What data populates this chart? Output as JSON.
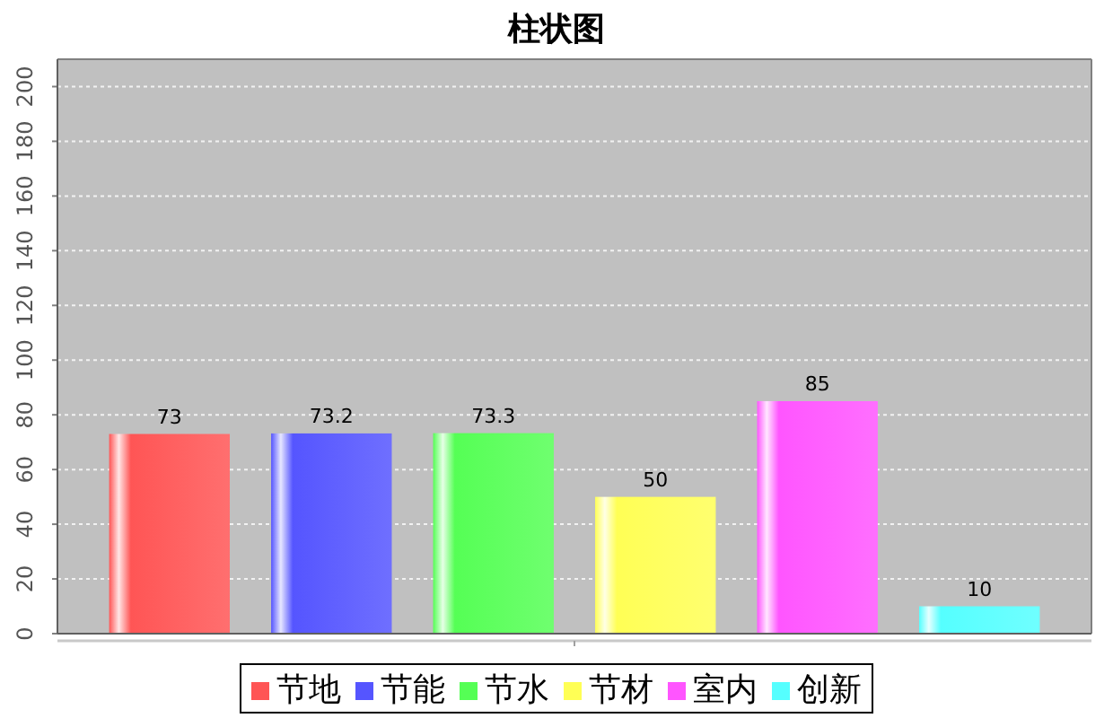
{
  "chart_data": {
    "type": "bar",
    "title": "柱状图",
    "categories": [
      null
    ],
    "series": [
      {
        "name": "节地",
        "color": "#ff5555",
        "values": [
          73
        ]
      },
      {
        "name": "节能",
        "color": "#5555ff",
        "values": [
          73.2
        ]
      },
      {
        "name": "节水",
        "color": "#55ff55",
        "values": [
          73.3
        ]
      },
      {
        "name": "节材",
        "color": "#ffff55",
        "values": [
          50
        ]
      },
      {
        "name": "室内",
        "color": "#ff55ff",
        "values": [
          85
        ]
      },
      {
        "name": "创新",
        "color": "#55ffff",
        "values": [
          10
        ]
      }
    ],
    "ylim": [
      0,
      210
    ],
    "yticks": [
      0,
      20,
      40,
      60,
      80,
      100,
      120,
      140,
      160,
      180,
      200
    ],
    "grid": "y",
    "legend": "bottom",
    "data_labels": true
  }
}
